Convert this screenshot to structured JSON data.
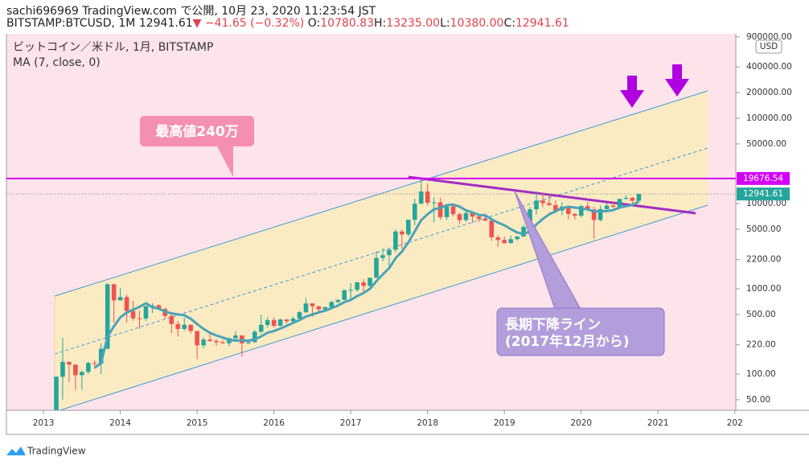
{
  "header": {
    "title": "sachi696969 TradingView.com で公開, 10月 23, 2020 11:23:54 JST",
    "symbol": "BITSTAMP:BTCUSD, 1M",
    "last": "12941.61",
    "arrow": "▼",
    "change": "−41.65 (−0.32%)",
    "ohlc": [
      {
        "label": "O:",
        "value": "10780.83"
      },
      {
        "label": "H:",
        "value": "13235.00"
      },
      {
        "label": "L:",
        "value": "10380.00"
      },
      {
        "label": "C:",
        "value": "12941.61"
      }
    ]
  },
  "chart_data": {
    "type": "candlestick",
    "title": "ビットコイン／米ドル, 1月, BITSTAMP",
    "log": true,
    "up_color": "#26a69a",
    "down_color": "#ef5350",
    "ylim": [
      37.6,
      979000
    ],
    "yticks": [
      {
        "value": 50,
        "label": "50.00"
      },
      {
        "value": 100,
        "label": "100.00"
      },
      {
        "value": 220,
        "label": "220.00"
      },
      {
        "value": 500,
        "label": "500.00"
      },
      {
        "value": 1000,
        "label": "1000.00"
      },
      {
        "value": 2200,
        "label": "2200.00"
      },
      {
        "value": 5000,
        "label": "5000.00"
      },
      {
        "value": 10000,
        "label": "10000.00"
      },
      {
        "value": 50000,
        "label": "50000.00"
      },
      {
        "value": 100000,
        "label": "100000.00"
      },
      {
        "value": 200000,
        "label": "200000.00"
      },
      {
        "value": 400000,
        "label": "400000.00"
      },
      {
        "value": 900000,
        "label": "900000.00"
      }
    ],
    "axis_unit": "USD",
    "x_labels": [
      "2013",
      "2014",
      "2015",
      "2016",
      "2017",
      "2018",
      "2019",
      "2020",
      "2021",
      "202"
    ],
    "open": [
      34,
      93,
      139,
      129,
      97,
      106,
      135,
      133,
      198,
      1130,
      732,
      800,
      550,
      450,
      447,
      627,
      640,
      580,
      480,
      386,
      338,
      378,
      320,
      217,
      254,
      244,
      236,
      230,
      263,
      284,
      230,
      236,
      314,
      377,
      430,
      368,
      437,
      416,
      448,
      531,
      673,
      624,
      574,
      609,
      700,
      742,
      963,
      970,
      1190,
      1080,
      1348,
      2300,
      2480,
      2875,
      4700,
      4338,
      6449,
      9947,
      13850,
      10221,
      10326,
      6925,
      9244,
      7494,
      6391,
      7730,
      7033,
      6625,
      6318,
      4017,
      3742,
      3437,
      3820,
      4102,
      5320,
      8564,
      10817,
      10084,
      9594,
      8293,
      9199,
      7546,
      7193,
      9349,
      8543,
      6410,
      8620,
      9448,
      9137,
      11333,
      11644,
      10780.83
    ],
    "high": [
      95,
      266,
      140,
      130,
      110,
      140,
      145,
      230,
      1163,
      1150,
      1020,
      850,
      720,
      550,
      630,
      680,
      660,
      600,
      500,
      420,
      460,
      380,
      320,
      270,
      300,
      260,
      250,
      270,
      320,
      285,
      250,
      330,
      500,
      470,
      465,
      445,
      440,
      470,
      550,
      780,
      680,
      630,
      620,
      720,
      755,
      980,
      1160,
      1210,
      1300,
      1350,
      2760,
      3000,
      2920,
      4980,
      4980,
      6470,
      11400,
      19666,
      17170,
      11790,
      11700,
      9760,
      10000,
      7760,
      8500,
      7760,
      7420,
      7680,
      6600,
      4230,
      4080,
      4200,
      4140,
      5640,
      9090,
      13880,
      13200,
      12330,
      10950,
      10380,
      9500,
      7750,
      9580,
      10500,
      9190,
      9480,
      10080,
      10400,
      11440,
      12480,
      12080,
      13235
    ],
    "low": [
      33,
      50,
      80,
      65,
      65,
      100,
      115,
      100,
      195,
      400,
      730,
      400,
      420,
      340,
      420,
      520,
      560,
      440,
      300,
      275,
      320,
      300,
      150,
      200,
      240,
      215,
      225,
      210,
      250,
      160,
      225,
      235,
      300,
      350,
      350,
      365,
      390,
      410,
      440,
      520,
      470,
      540,
      570,
      605,
      680,
      740,
      750,
      920,
      890,
      1060,
      1340,
      2100,
      1830,
      2670,
      2970,
      4110,
      5520,
      9900,
      9400,
      6000,
      6450,
      6430,
      7040,
      5750,
      6080,
      5880,
      6100,
      6200,
      3650,
      3120,
      3400,
      3380,
      3700,
      4090,
      5300,
      7450,
      9080,
      9340,
      7740,
      7300,
      6520,
      6430,
      6880,
      8440,
      3850,
      6150,
      8100,
      8900,
      9050,
      11140,
      9830,
      10380
    ],
    "close": [
      93,
      139,
      129,
      97,
      106,
      135,
      133,
      198,
      1130,
      732,
      800,
      550,
      450,
      447,
      627,
      640,
      580,
      480,
      386,
      338,
      378,
      320,
      217,
      254,
      244,
      236,
      230,
      263,
      284,
      230,
      236,
      314,
      377,
      430,
      368,
      437,
      416,
      448,
      531,
      673,
      624,
      574,
      609,
      700,
      742,
      963,
      970,
      1190,
      1080,
      1348,
      2300,
      2480,
      2875,
      4700,
      4338,
      6449,
      9947,
      13850,
      10221,
      10326,
      6925,
      9244,
      7494,
      6391,
      7730,
      7033,
      6625,
      6318,
      4017,
      3742,
      3437,
      3820,
      4102,
      5320,
      8564,
      10817,
      10084,
      9594,
      8293,
      9199,
      7546,
      7193,
      9349,
      8543,
      6410,
      8620,
      9448,
      9137,
      11333,
      11644,
      10776,
      12941.61
    ],
    "indicator": {
      "name": "MA (7, close, 0)",
      "color": "#4aa3b8",
      "values": [
        null,
        null,
        null,
        null,
        null,
        null,
        119,
        134,
        275,
        362,
        462,
        525,
        570,
        615,
        677,
        607,
        585,
        539,
        516,
        500,
        490,
        446,
        386,
        339,
        305,
        284,
        268,
        252,
        247,
        249,
        246,
        256,
        276,
        305,
        320,
        342,
        368,
        399,
        430,
        472,
        500,
        529,
        554,
        594,
        636,
        698,
        740,
        821,
        893,
        999,
        1228,
        1476,
        1749,
        2282,
        2732,
        3499,
        4727,
        6377,
        7483,
        8547,
        8865,
        9566,
        9715,
        9207,
        8333,
        7878,
        7349,
        7262,
        6515,
        5979,
        5557,
        4999,
        4580,
        4394,
        4715,
        5686,
        6592,
        7472,
        8111,
        8839,
        9157,
        8961,
        8751,
        8531,
        8076,
        8123,
        8158,
        8386,
        8977,
        9305,
        9624,
        10557
      ]
    },
    "hline": {
      "value": 19676.54,
      "color": "#d500f9"
    }
  },
  "annotations": {
    "peak": "最高値240万",
    "trend": [
      "長期下降ライン",
      "(2017年12月から)"
    ]
  },
  "footer": {
    "brand": "TradingView"
  }
}
